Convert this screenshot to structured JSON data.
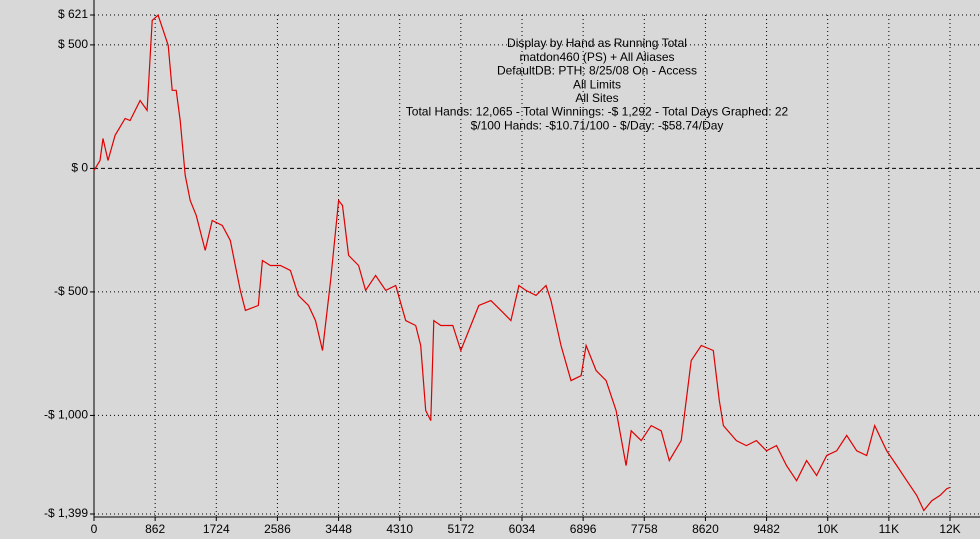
{
  "chart_data": {
    "type": "line",
    "title": "Display by Hand as Running Total",
    "subtitle": [
      "matdon460 (PS) + All Aliases",
      "DefaultDB: PTH: 8/25/08 On - Access",
      "All Limits",
      "All Sites",
      "Total Hands: 12,065 - Total Winnings: -$ 1,292 - Total Days Graphed: 22",
      "$/100 Hands: -$10.71/100 - $/Day: -$58.74/Day"
    ],
    "x": [
      0,
      85,
      127,
      198,
      297,
      438,
      509,
      650,
      749,
      820,
      904,
      975,
      1046,
      1102,
      1159,
      1215,
      1286,
      1356,
      1441,
      1568,
      1667,
      1809,
      1922,
      2063,
      2134,
      2317,
      2374,
      2487,
      2628,
      2769,
      2882,
      3024,
      3123,
      3222,
      3335,
      3448,
      3504,
      3589,
      3730,
      3829,
      3970,
      4112,
      4253,
      4394,
      4536,
      4606,
      4677,
      4748,
      4790,
      4889,
      5058,
      5171,
      5284,
      5425,
      5595,
      5736,
      5877,
      5990,
      6089,
      6231,
      6372,
      6443,
      6584,
      6725,
      6867,
      6937,
      7079,
      7220,
      7361,
      7502,
      7573,
      7714,
      7856,
      7997,
      8110,
      8279,
      8420,
      8562,
      8731,
      8816,
      8873,
      9056,
      9198,
      9339,
      9481,
      9622,
      9763,
      9905,
      10046,
      10187,
      10329,
      10470,
      10611,
      10753,
      10894,
      11007,
      11176,
      11318,
      11459,
      11600,
      11699,
      11812,
      11925,
      12024,
      12065
    ],
    "series": [
      {
        "color": "#e00000",
        "values": [
          -8,
          32,
          121,
          32,
          134,
          202,
          194,
          275,
          235,
          599,
          620,
          559,
          498,
          316,
          316,
          194,
          -28,
          -130,
          -190,
          -332,
          -211,
          -231,
          -292,
          -494,
          -575,
          -555,
          -373,
          -393,
          -393,
          -413,
          -514,
          -555,
          -616,
          -737,
          -454,
          -130,
          -150,
          -352,
          -393,
          -494,
          -433,
          -494,
          -474,
          -616,
          -636,
          -717,
          -980,
          -1021,
          -616,
          -636,
          -636,
          -737,
          -656,
          -555,
          -535,
          -575,
          -616,
          -474,
          -494,
          -514,
          -474,
          -535,
          -717,
          -859,
          -839,
          -717,
          -818,
          -859,
          -980,
          -1203,
          -1062,
          -1102,
          -1041,
          -1062,
          -1183,
          -1102,
          -778,
          -717,
          -737,
          -940,
          -1041,
          -1102,
          -1122,
          -1102,
          -1143,
          -1122,
          -1203,
          -1264,
          -1183,
          -1243,
          -1162,
          -1143,
          -1081,
          -1143,
          -1162,
          -1041,
          -1143,
          -1203,
          -1264,
          -1324,
          -1385,
          -1345,
          -1324,
          -1296,
          -1292
        ]
      }
    ],
    "xlim": [
      0,
      12068
    ],
    "ylim": [
      -1399,
      621
    ],
    "xticks": [
      0,
      862,
      1724,
      2586,
      3448,
      4310,
      5172,
      6034,
      6896,
      7758,
      8620,
      9482,
      {
        "value": 10344,
        "label": "10K"
      },
      {
        "value": 11206,
        "label": "11K"
      },
      {
        "value": 12068,
        "label": "12K"
      }
    ],
    "yticks": [
      {
        "value": 621,
        "label": "$ 621"
      },
      {
        "value": 500,
        "label": "$ 500"
      },
      {
        "value": 0,
        "label": "$ 0"
      },
      {
        "value": -500,
        "label": "-$ 500"
      },
      {
        "value": -1000,
        "label": "-$ 1,000"
      },
      {
        "value": -1399,
        "label": "-$ 1,399"
      }
    ],
    "grid": true
  }
}
